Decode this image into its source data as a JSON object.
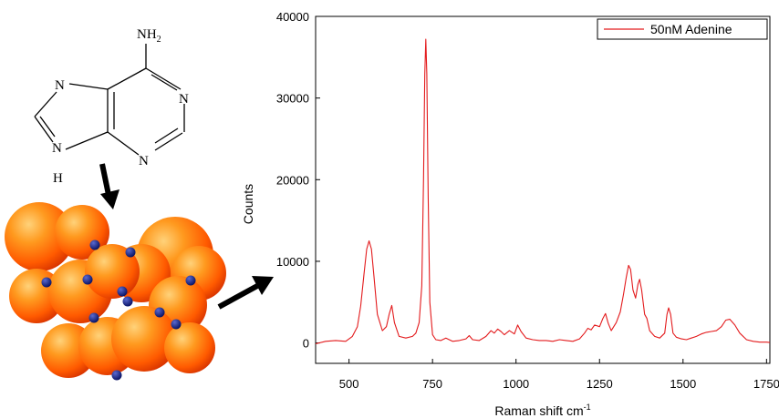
{
  "chart_data": {
    "type": "line",
    "title": "",
    "xlabel": "Raman shift cm",
    "xlabel_sup": "-1",
    "ylabel": "Counts",
    "xlim": [
      400,
      1760
    ],
    "ylim": [
      -2500,
      40000
    ],
    "x_ticks": [
      500,
      750,
      1000,
      1250,
      1500,
      1750
    ],
    "x_tick_labels": [
      "500",
      "750",
      "1000",
      "1250",
      "1500",
      "1750"
    ],
    "y_ticks": [
      0,
      10000,
      20000,
      30000,
      40000
    ],
    "y_tick_labels": [
      "0",
      "10000",
      "20000",
      "30000",
      "40000"
    ],
    "grid": false,
    "legend_position": "top-right",
    "series": [
      {
        "name": "50nM Adenine",
        "color": "#e31a1c",
        "x": [
          400,
          430,
          460,
          490,
          510,
          525,
          535,
          545,
          553,
          560,
          567,
          575,
          585,
          600,
          612,
          620,
          628,
          636,
          650,
          670,
          690,
          700,
          710,
          718,
          723,
          727,
          730,
          733,
          737,
          742,
          750,
          760,
          775,
          790,
          810,
          830,
          850,
          860,
          870,
          890,
          910,
          925,
          935,
          945,
          955,
          965,
          980,
          995,
          1005,
          1015,
          1030,
          1050,
          1070,
          1090,
          1110,
          1130,
          1150,
          1170,
          1190,
          1205,
          1215,
          1225,
          1235,
          1250,
          1260,
          1268,
          1276,
          1285,
          1300,
          1312,
          1322,
          1330,
          1337,
          1343,
          1350,
          1358,
          1365,
          1370,
          1376,
          1385,
          1392,
          1400,
          1415,
          1430,
          1445,
          1452,
          1457,
          1463,
          1470,
          1480,
          1495,
          1510,
          1525,
          1540,
          1555,
          1570,
          1585,
          1600,
          1615,
          1628,
          1640,
          1655,
          1670,
          1690,
          1710,
          1730,
          1750,
          1760
        ],
        "y": [
          -100,
          200,
          300,
          200,
          800,
          2000,
          4500,
          8500,
          11500,
          12500,
          11500,
          8000,
          3500,
          1500,
          2000,
          3500,
          4600,
          2500,
          800,
          600,
          800,
          1200,
          2500,
          7000,
          20000,
          33000,
          37200,
          33000,
          18000,
          5000,
          1000,
          400,
          300,
          600,
          200,
          300,
          500,
          900,
          400,
          300,
          800,
          1500,
          1200,
          1700,
          1400,
          1000,
          1500,
          1100,
          2200,
          1400,
          600,
          400,
          300,
          300,
          200,
          400,
          300,
          200,
          500,
          1200,
          1800,
          1600,
          2200,
          2000,
          3000,
          3600,
          2400,
          1500,
          2500,
          3800,
          6000,
          8000,
          9500,
          9000,
          6500,
          5500,
          7200,
          7800,
          6500,
          3500,
          3000,
          1500,
          800,
          600,
          1200,
          3500,
          4300,
          3500,
          1200,
          700,
          500,
          400,
          600,
          800,
          1100,
          1300,
          1400,
          1500,
          2000,
          2800,
          2900,
          2200,
          1200,
          400,
          200,
          100,
          100,
          50
        ]
      }
    ]
  },
  "molecule": {
    "name": "Adenine",
    "amine_label": "NH",
    "amine_subscript": "2",
    "atom_N7": "N",
    "atom_N1": "N",
    "atom_N3": "N",
    "atom_N9": "N",
    "atom_H9": "H"
  },
  "colors": {
    "series": "#e31a1c",
    "nanoparticle_light": "#ffb347",
    "nanoparticle_mid": "#ff6a00",
    "nanoparticle_dark": "#c41e00",
    "molecule_dot": "#0d1a7a",
    "arrow": "#000000"
  }
}
